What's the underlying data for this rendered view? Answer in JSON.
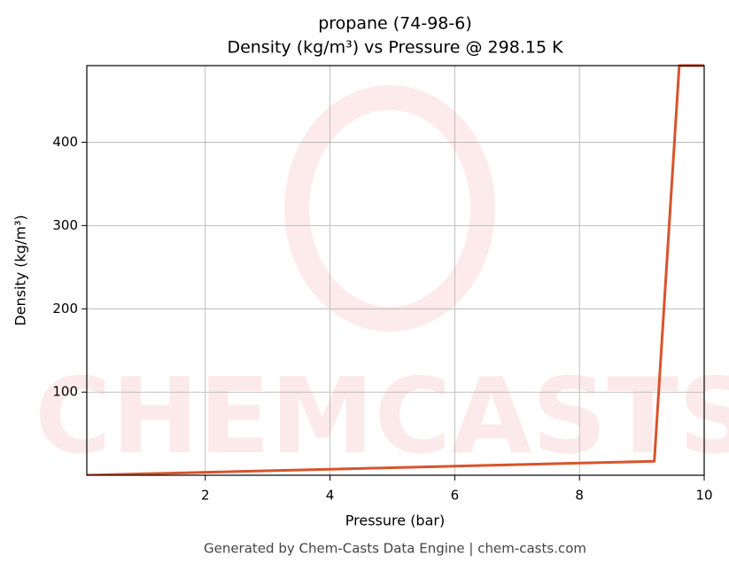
{
  "chart_data": {
    "type": "line",
    "title": [
      "propane (74-98-6)",
      "Density (kg/m³) vs Pressure @ 298.15 K"
    ],
    "x_label": "Pressure (bar)",
    "y_label": "Density (kg/m³)",
    "x": [
      0.1,
      9.2,
      9.6,
      10
    ],
    "series": [
      {
        "name": "Density",
        "color": "#d9532a",
        "values": [
          0.18,
          17,
          492,
          492
        ]
      }
    ],
    "xlim": [
      0.1,
      10
    ],
    "ylim": [
      0.2,
      492
    ],
    "xticks": [
      2,
      4,
      6,
      8,
      10
    ],
    "yticks": [
      100,
      200,
      300,
      400
    ],
    "grid": true,
    "legend": false,
    "watermark": "CHEMCASTS",
    "footer": "Generated by Chem-Casts Data Engine | chem-casts.com"
  }
}
